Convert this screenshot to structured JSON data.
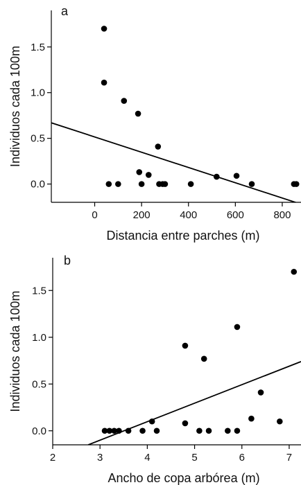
{
  "chart_data": [
    {
      "type": "scatter",
      "panel_label": "a",
      "xlabel": "Distancia entre parches (m)",
      "ylabel": "Individuos cada 100m",
      "xlim": [
        -185,
        880
      ],
      "ylim": [
        -0.2,
        1.9
      ],
      "xticks": [
        0,
        200,
        400,
        600,
        800
      ],
      "xtick_labels": [
        "0",
        "200",
        "400",
        "600",
        "800"
      ],
      "yticks": [
        0.0,
        0.5,
        1.0,
        1.5
      ],
      "ytick_labels": [
        "0.0",
        "0.5",
        "1.0",
        "1.5"
      ],
      "points": [
        {
          "x": 40,
          "y": 1.7
        },
        {
          "x": 40,
          "y": 1.11
        },
        {
          "x": 125,
          "y": 0.91
        },
        {
          "x": 185,
          "y": 0.77
        },
        {
          "x": 270,
          "y": 0.41
        },
        {
          "x": 190,
          "y": 0.13
        },
        {
          "x": 230,
          "y": 0.1
        },
        {
          "x": 520,
          "y": 0.08
        },
        {
          "x": 605,
          "y": 0.09
        },
        {
          "x": 60,
          "y": 0.0
        },
        {
          "x": 100,
          "y": 0.0
        },
        {
          "x": 200,
          "y": 0.0
        },
        {
          "x": 275,
          "y": 0.0
        },
        {
          "x": 290,
          "y": 0.0
        },
        {
          "x": 300,
          "y": 0.0
        },
        {
          "x": 410,
          "y": 0.0
        },
        {
          "x": 670,
          "y": 0.0
        },
        {
          "x": 850,
          "y": 0.0
        },
        {
          "x": 860,
          "y": 0.0
        }
      ],
      "fit_line": {
        "x": [
          -185,
          880
        ],
        "y": [
          0.67,
          -0.22
        ]
      },
      "grid": false
    },
    {
      "type": "scatter",
      "panel_label": "b",
      "xlabel": "Ancho de copa arbórea (m)",
      "ylabel": "Individuos cada 100m",
      "xlim": [
        2.0,
        7.25
      ],
      "ylim": [
        -0.15,
        1.85
      ],
      "xticks": [
        2,
        3,
        4,
        5,
        6,
        7
      ],
      "xtick_labels": [
        "2",
        "3",
        "4",
        "5",
        "6",
        "7"
      ],
      "yticks": [
        0.0,
        0.5,
        1.0,
        1.5
      ],
      "ytick_labels": [
        "0.0",
        "0.5",
        "1.0",
        "1.5"
      ],
      "points": [
        {
          "x": 7.1,
          "y": 1.7
        },
        {
          "x": 5.9,
          "y": 1.11
        },
        {
          "x": 4.8,
          "y": 0.91
        },
        {
          "x": 5.2,
          "y": 0.77
        },
        {
          "x": 6.4,
          "y": 0.41
        },
        {
          "x": 6.2,
          "y": 0.13
        },
        {
          "x": 4.1,
          "y": 0.1
        },
        {
          "x": 6.8,
          "y": 0.1
        },
        {
          "x": 4.8,
          "y": 0.08
        },
        {
          "x": 3.1,
          "y": 0.0
        },
        {
          "x": 3.2,
          "y": 0.0
        },
        {
          "x": 3.3,
          "y": 0.0
        },
        {
          "x": 3.4,
          "y": 0.0
        },
        {
          "x": 3.6,
          "y": 0.0
        },
        {
          "x": 3.9,
          "y": 0.0
        },
        {
          "x": 4.2,
          "y": 0.0
        },
        {
          "x": 5.1,
          "y": 0.0
        },
        {
          "x": 5.3,
          "y": 0.0
        },
        {
          "x": 5.7,
          "y": 0.0
        },
        {
          "x": 5.9,
          "y": 0.0
        }
      ],
      "fit_line": {
        "x": [
          2.75,
          7.25
        ],
        "y": [
          -0.15,
          0.74
        ]
      },
      "grid": false
    }
  ]
}
